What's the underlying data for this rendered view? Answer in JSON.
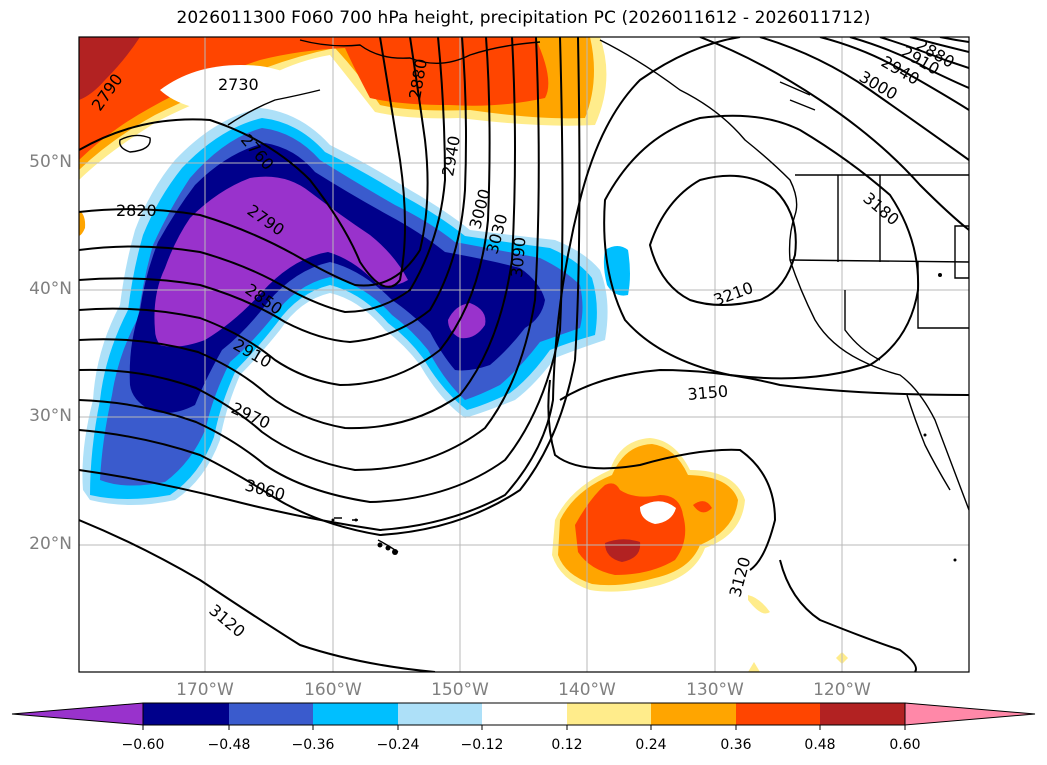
{
  "title": "2026011300 F060 700 hPa height, precipitation PC (2026011612 - 2026011712)",
  "lat_labels": [
    "50°N",
    "40°N",
    "30°N",
    "20°N"
  ],
  "lon_labels": [
    "170°W",
    "160°W",
    "150°W",
    "140°W",
    "130°W",
    "120°W"
  ],
  "contour_labels": [
    "2730",
    "2790",
    "2760",
    "2790",
    "2820",
    "2850",
    "2880",
    "2910",
    "2940",
    "2970",
    "3000",
    "3030",
    "3060",
    "3090",
    "3120",
    "3120",
    "3150",
    "3180",
    "3210",
    "3000",
    "2940",
    "2910",
    "2880"
  ],
  "colorbar": {
    "tick_labels": [
      "−0.60",
      "−0.48",
      "−0.36",
      "−0.24",
      "−0.12",
      "0.12",
      "0.24",
      "0.36",
      "0.48",
      "0.60"
    ],
    "colors": [
      "#9932cc",
      "#00008b",
      "#3a5bcd",
      "#00bfff",
      "#ade0f8",
      "#ffffff",
      "#ffec8b",
      "#ffa500",
      "#ff4500",
      "#b22222",
      "#ff88a8"
    ]
  }
}
